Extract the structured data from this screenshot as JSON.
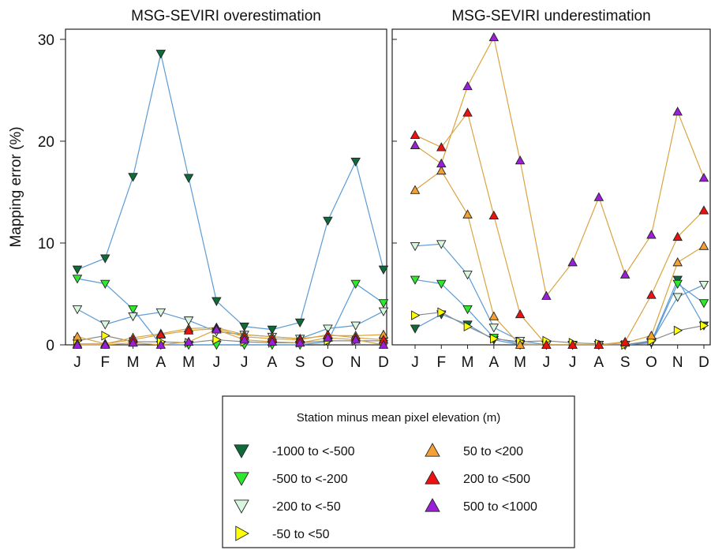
{
  "chart_data": [
    {
      "type": "line",
      "title": "MSG-SEVIRI overestimation",
      "xlabel": "",
      "ylabel": "Mapping error (%)",
      "categories": [
        "J",
        "F",
        "M",
        "A",
        "M",
        "J",
        "J",
        "A",
        "S",
        "O",
        "N",
        "D"
      ],
      "ylim": [
        0,
        31
      ],
      "yticks": [
        0,
        10,
        20,
        30
      ],
      "series": [
        {
          "name": "-1000 to <-500",
          "values": [
            7.4,
            8.5,
            16.5,
            28.6,
            16.4,
            4.3,
            1.8,
            1.5,
            2.2,
            12.2,
            18.0,
            7.4
          ]
        },
        {
          "name": "-500 to <-200",
          "values": [
            6.5,
            6.0,
            3.5,
            0.0,
            0.0,
            0.0,
            0.0,
            0.0,
            0.0,
            0.3,
            6.0,
            4.1
          ]
        },
        {
          "name": "-200 to <-50",
          "values": [
            3.5,
            2.0,
            2.8,
            3.2,
            2.4,
            1.3,
            1.0,
            0.8,
            0.6,
            1.6,
            1.9,
            3.3
          ]
        },
        {
          "name": "-50 to <50",
          "values": [
            0.4,
            0.9,
            0.3,
            0.3,
            0.2,
            0.5,
            0.3,
            0.2,
            0.2,
            0.4,
            0.4,
            0.4
          ]
        },
        {
          "name": "50 to <200",
          "values": [
            0.8,
            0.1,
            0.7,
            1.1,
            1.6,
            1.7,
            1.0,
            0.8,
            0.6,
            0.9,
            0.9,
            1.0
          ]
        },
        {
          "name": "200 to <500",
          "values": [
            0.1,
            0.1,
            0.5,
            1.0,
            1.4,
            1.6,
            0.8,
            0.6,
            0.5,
            1.0,
            0.7,
            0.5
          ]
        },
        {
          "name": "500 to <1000",
          "values": [
            0.0,
            0.0,
            0.2,
            0.0,
            0.3,
            1.5,
            0.5,
            0.3,
            0.2,
            0.7,
            0.5,
            0.0
          ]
        }
      ]
    },
    {
      "type": "line",
      "title": "MSG-SEVIRI underestimation",
      "xlabel": "",
      "ylabel": "",
      "categories": [
        "J",
        "F",
        "M",
        "A",
        "M",
        "J",
        "J",
        "A",
        "S",
        "O",
        "N",
        "D"
      ],
      "ylim": [
        0,
        31
      ],
      "series": [
        {
          "name": "-1000 to <-500",
          "values": [
            1.6,
            3.0,
            2.0,
            0.5,
            0.0,
            0.0,
            0.0,
            0.0,
            0.0,
            0.3,
            6.4,
            1.9
          ]
        },
        {
          "name": "-500 to <-200",
          "values": [
            6.4,
            6.0,
            3.5,
            0.7,
            0.1,
            0.0,
            0.0,
            0.0,
            0.0,
            0.2,
            6.0,
            4.1
          ]
        },
        {
          "name": "-200 to <-50",
          "values": [
            9.7,
            9.9,
            6.9,
            1.7,
            0.4,
            0.0,
            0.0,
            0.0,
            0.0,
            0.3,
            4.7,
            5.9
          ]
        },
        {
          "name": "-50 to <50",
          "values": [
            2.9,
            3.2,
            1.8,
            0.6,
            0.3,
            0.4,
            0.2,
            0.1,
            0.0,
            0.4,
            1.4,
            1.9
          ]
        },
        {
          "name": "50 to <200",
          "values": [
            15.2,
            17.1,
            12.8,
            2.8,
            0.0,
            0.0,
            0.0,
            0.0,
            0.2,
            0.9,
            8.1,
            9.7
          ]
        },
        {
          "name": "200 to <500",
          "values": [
            20.6,
            19.4,
            22.8,
            12.7,
            3.0,
            0.0,
            0.0,
            0.0,
            0.3,
            4.9,
            10.6,
            13.2
          ]
        },
        {
          "name": "500 to <1000",
          "values": [
            19.6,
            17.8,
            25.4,
            30.2,
            18.1,
            4.8,
            8.1,
            14.5,
            6.9,
            10.8,
            22.9,
            16.4
          ]
        }
      ]
    }
  ],
  "legend": {
    "title": "Station minus mean pixel elevation (m)",
    "placement": "bottom-center",
    "items": [
      {
        "label": "-1000 to <-500",
        "marker": "triangle-down",
        "fill": "#0f6b3a",
        "line": "#5b9bd5"
      },
      {
        "label": "-500 to <-200",
        "marker": "triangle-down",
        "fill": "#2ee82e",
        "line": "#5b9bd5"
      },
      {
        "label": "-200 to <-50",
        "marker": "triangle-down",
        "fill": "#d9f7df",
        "line": "#5b9bd5"
      },
      {
        "label": "-50 to <50",
        "marker": "triangle-right",
        "fill": "#ffff00",
        "line": "#888888"
      },
      {
        "label": "50 to <200",
        "marker": "triangle-up",
        "fill": "#f5a033",
        "line": "#d9a441"
      },
      {
        "label": "200 to <500",
        "marker": "triangle-up",
        "fill": "#ee1111",
        "line": "#d9a441"
      },
      {
        "label": "500 to <1000",
        "marker": "triangle-up",
        "fill": "#9b1fd9",
        "line": "#d9a441"
      }
    ]
  }
}
